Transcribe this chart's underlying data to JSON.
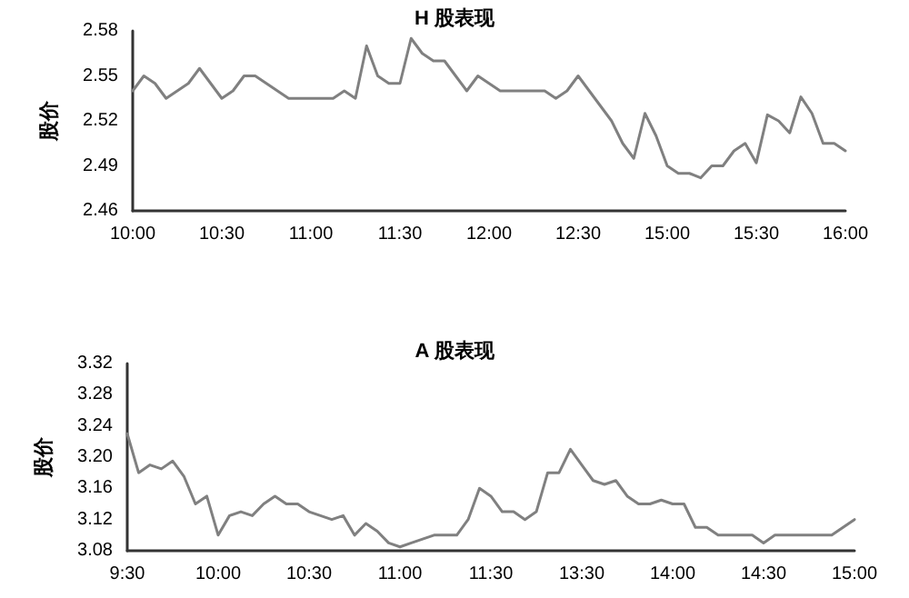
{
  "chart_data": [
    {
      "type": "line",
      "title": "H 股表现",
      "ylabel": "股价",
      "categories": [
        "10:00",
        null,
        null,
        null,
        null,
        null,
        null,
        null,
        "10:30",
        null,
        null,
        null,
        null,
        null,
        null,
        null,
        "11:00",
        null,
        null,
        null,
        null,
        null,
        null,
        null,
        "11:30",
        null,
        null,
        null,
        null,
        null,
        null,
        null,
        "12:00",
        null,
        null,
        null,
        null,
        null,
        null,
        null,
        "12:30",
        null,
        null,
        null,
        null,
        null,
        null,
        null,
        "15:00",
        null,
        null,
        null,
        null,
        null,
        null,
        null,
        "15:30",
        null,
        null,
        null,
        null,
        null,
        null,
        null,
        "16:00"
      ],
      "series": [
        {
          "color": "#808080",
          "values": [
            2.54,
            2.55,
            2.545,
            2.535,
            2.54,
            2.545,
            2.555,
            2.545,
            2.535,
            2.54,
            2.55,
            2.55,
            2.545,
            2.54,
            2.535,
            2.535,
            2.535,
            2.535,
            2.535,
            2.54,
            2.535,
            2.57,
            2.55,
            2.545,
            2.545,
            2.575,
            2.565,
            2.56,
            2.56,
            2.55,
            2.54,
            2.55,
            2.545,
            2.54,
            2.54,
            2.54,
            2.54,
            2.54,
            2.535,
            2.54,
            2.55,
            2.54,
            2.53,
            2.52,
            2.505,
            2.495,
            2.525,
            2.51,
            2.49,
            2.485,
            2.485,
            2.482,
            2.49,
            2.49,
            2.5,
            2.505,
            2.492,
            2.524,
            2.52,
            2.512,
            2.536,
            2.525,
            2.505,
            2.505,
            2.5
          ]
        }
      ],
      "ylim": [
        2.46,
        2.58
      ],
      "yticks": [
        2.46,
        2.49,
        2.52,
        2.55,
        2.58
      ],
      "grid": false,
      "marker": "none",
      "line_style": "solid"
    },
    {
      "type": "line",
      "title": "A 股表现",
      "ylabel": "股价",
      "categories": [
        "9:30",
        null,
        null,
        null,
        null,
        null,
        null,
        null,
        "10:00",
        null,
        null,
        null,
        null,
        null,
        null,
        null,
        "10:30",
        null,
        null,
        null,
        null,
        null,
        null,
        null,
        "11:00",
        null,
        null,
        null,
        null,
        null,
        null,
        null,
        "11:30",
        null,
        null,
        null,
        null,
        null,
        null,
        null,
        "13:30",
        null,
        null,
        null,
        null,
        null,
        null,
        null,
        "14:00",
        null,
        null,
        null,
        null,
        null,
        null,
        null,
        "14:30",
        null,
        null,
        null,
        null,
        null,
        null,
        null,
        "15:00"
      ],
      "series": [
        {
          "color": "#808080",
          "values": [
            3.23,
            3.18,
            3.19,
            3.185,
            3.195,
            3.175,
            3.14,
            3.15,
            3.1,
            3.125,
            3.13,
            3.125,
            3.14,
            3.15,
            3.14,
            3.14,
            3.13,
            3.125,
            3.12,
            3.125,
            3.1,
            3.115,
            3.105,
            3.09,
            3.085,
            3.09,
            3.095,
            3.1,
            3.1,
            3.1,
            3.12,
            3.16,
            3.15,
            3.13,
            3.13,
            3.12,
            3.13,
            3.18,
            3.18,
            3.21,
            3.19,
            3.17,
            3.165,
            3.17,
            3.15,
            3.14,
            3.14,
            3.145,
            3.14,
            3.14,
            3.11,
            3.11,
            3.1,
            3.1,
            3.1,
            3.1,
            3.09,
            3.1,
            3.1,
            3.1,
            3.1,
            3.1,
            3.1,
            3.11,
            3.12
          ]
        }
      ],
      "ylim": [
        3.08,
        3.32
      ],
      "yticks": [
        3.08,
        3.12,
        3.16,
        {
          "value": 3.2,
          "label": "3.20"
        },
        3.24,
        3.28,
        3.32
      ],
      "grid": false,
      "marker": "none",
      "line_style": "solid"
    }
  ]
}
